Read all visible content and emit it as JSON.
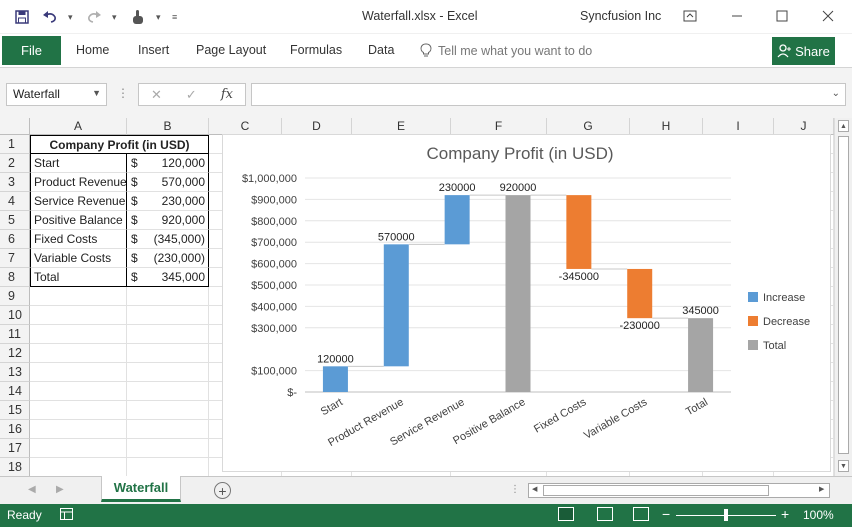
{
  "window": {
    "title": "Waterfall.xlsx - Excel",
    "account": "Syncfusion Inc"
  },
  "ribbon": {
    "file": "File",
    "tabs": [
      "Home",
      "Insert",
      "Page Layout",
      "Formulas",
      "Data"
    ],
    "tell_me": "Tell me what you want to do",
    "share": "Share"
  },
  "formula_bar": {
    "name_box": "Waterfall",
    "fx": "fx",
    "formula": ""
  },
  "grid": {
    "columns": [
      "A",
      "B",
      "C",
      "D",
      "E",
      "F",
      "G",
      "H",
      "I",
      "J"
    ],
    "rows": [
      "1",
      "2",
      "3",
      "4",
      "5",
      "6",
      "7",
      "8",
      "9",
      "10",
      "11",
      "12",
      "13",
      "14",
      "15",
      "16",
      "17",
      "18"
    ],
    "table_title": "Company Profit (in USD)",
    "table": [
      {
        "label": "Start",
        "currency": "$",
        "value": "120,000"
      },
      {
        "label": "Product Revenue",
        "currency": "$",
        "value": "570,000"
      },
      {
        "label": "Service Revenue",
        "currency": "$",
        "value": "230,000"
      },
      {
        "label": "Positive Balance",
        "currency": "$",
        "value": "920,000"
      },
      {
        "label": "Fixed Costs",
        "currency": "$",
        "value": "(345,000)"
      },
      {
        "label": "Variable Costs",
        "currency": "$",
        "value": "(230,000)"
      },
      {
        "label": "Total",
        "currency": "$",
        "value": "345,000"
      }
    ]
  },
  "chart_data": {
    "type": "bar",
    "subtype": "waterfall",
    "title": "Company Profit (in USD)",
    "categories": [
      "Start",
      "Product Revenue",
      "Service Revenue",
      "Positive Balance",
      "Fixed Costs",
      "Variable Costs",
      "Total"
    ],
    "bars": [
      {
        "category": "Start",
        "low": 0,
        "high": 120000,
        "kind": "increase",
        "label": "120000"
      },
      {
        "category": "Product Revenue",
        "low": 120000,
        "high": 690000,
        "kind": "increase",
        "label": "570000"
      },
      {
        "category": "Service Revenue",
        "low": 690000,
        "high": 920000,
        "kind": "increase",
        "label": "230000"
      },
      {
        "category": "Positive Balance",
        "low": 0,
        "high": 920000,
        "kind": "total",
        "label": "920000"
      },
      {
        "category": "Fixed Costs",
        "low": 575000,
        "high": 920000,
        "kind": "decrease",
        "label": "-345000"
      },
      {
        "category": "Variable Costs",
        "low": 345000,
        "high": 575000,
        "kind": "decrease",
        "label": "-230000"
      },
      {
        "category": "Total",
        "low": 0,
        "high": 345000,
        "kind": "total",
        "label": "345000"
      }
    ],
    "y_ticks": [
      {
        "value": 0,
        "label": "$-"
      },
      {
        "value": 100000,
        "label": "$100,000"
      },
      {
        "value": 300000,
        "label": "$300,000"
      },
      {
        "value": 400000,
        "label": "$400,000"
      },
      {
        "value": 500000,
        "label": "$500,000"
      },
      {
        "value": 600000,
        "label": "$600,000"
      },
      {
        "value": 700000,
        "label": "$700,000"
      },
      {
        "value": 800000,
        "label": "$800,000"
      },
      {
        "value": 900000,
        "label": "$900,000"
      },
      {
        "value": 1000000,
        "label": "$1,000,000"
      }
    ],
    "ylim": [
      0,
      1000000
    ],
    "legend": [
      {
        "name": "Increase",
        "kind": "increase"
      },
      {
        "name": "Decrease",
        "kind": "decrease"
      },
      {
        "name": "Total",
        "kind": "total"
      }
    ],
    "legend_position": "right",
    "colors": {
      "increase": "#5b9bd5",
      "decrease": "#ed7d31",
      "total": "#a5a5a5"
    },
    "grid": true
  },
  "sheet_tabs": {
    "active": "Waterfall"
  },
  "status": {
    "ready": "Ready",
    "zoom": "100%"
  },
  "colors": {
    "accent": "#217346"
  }
}
